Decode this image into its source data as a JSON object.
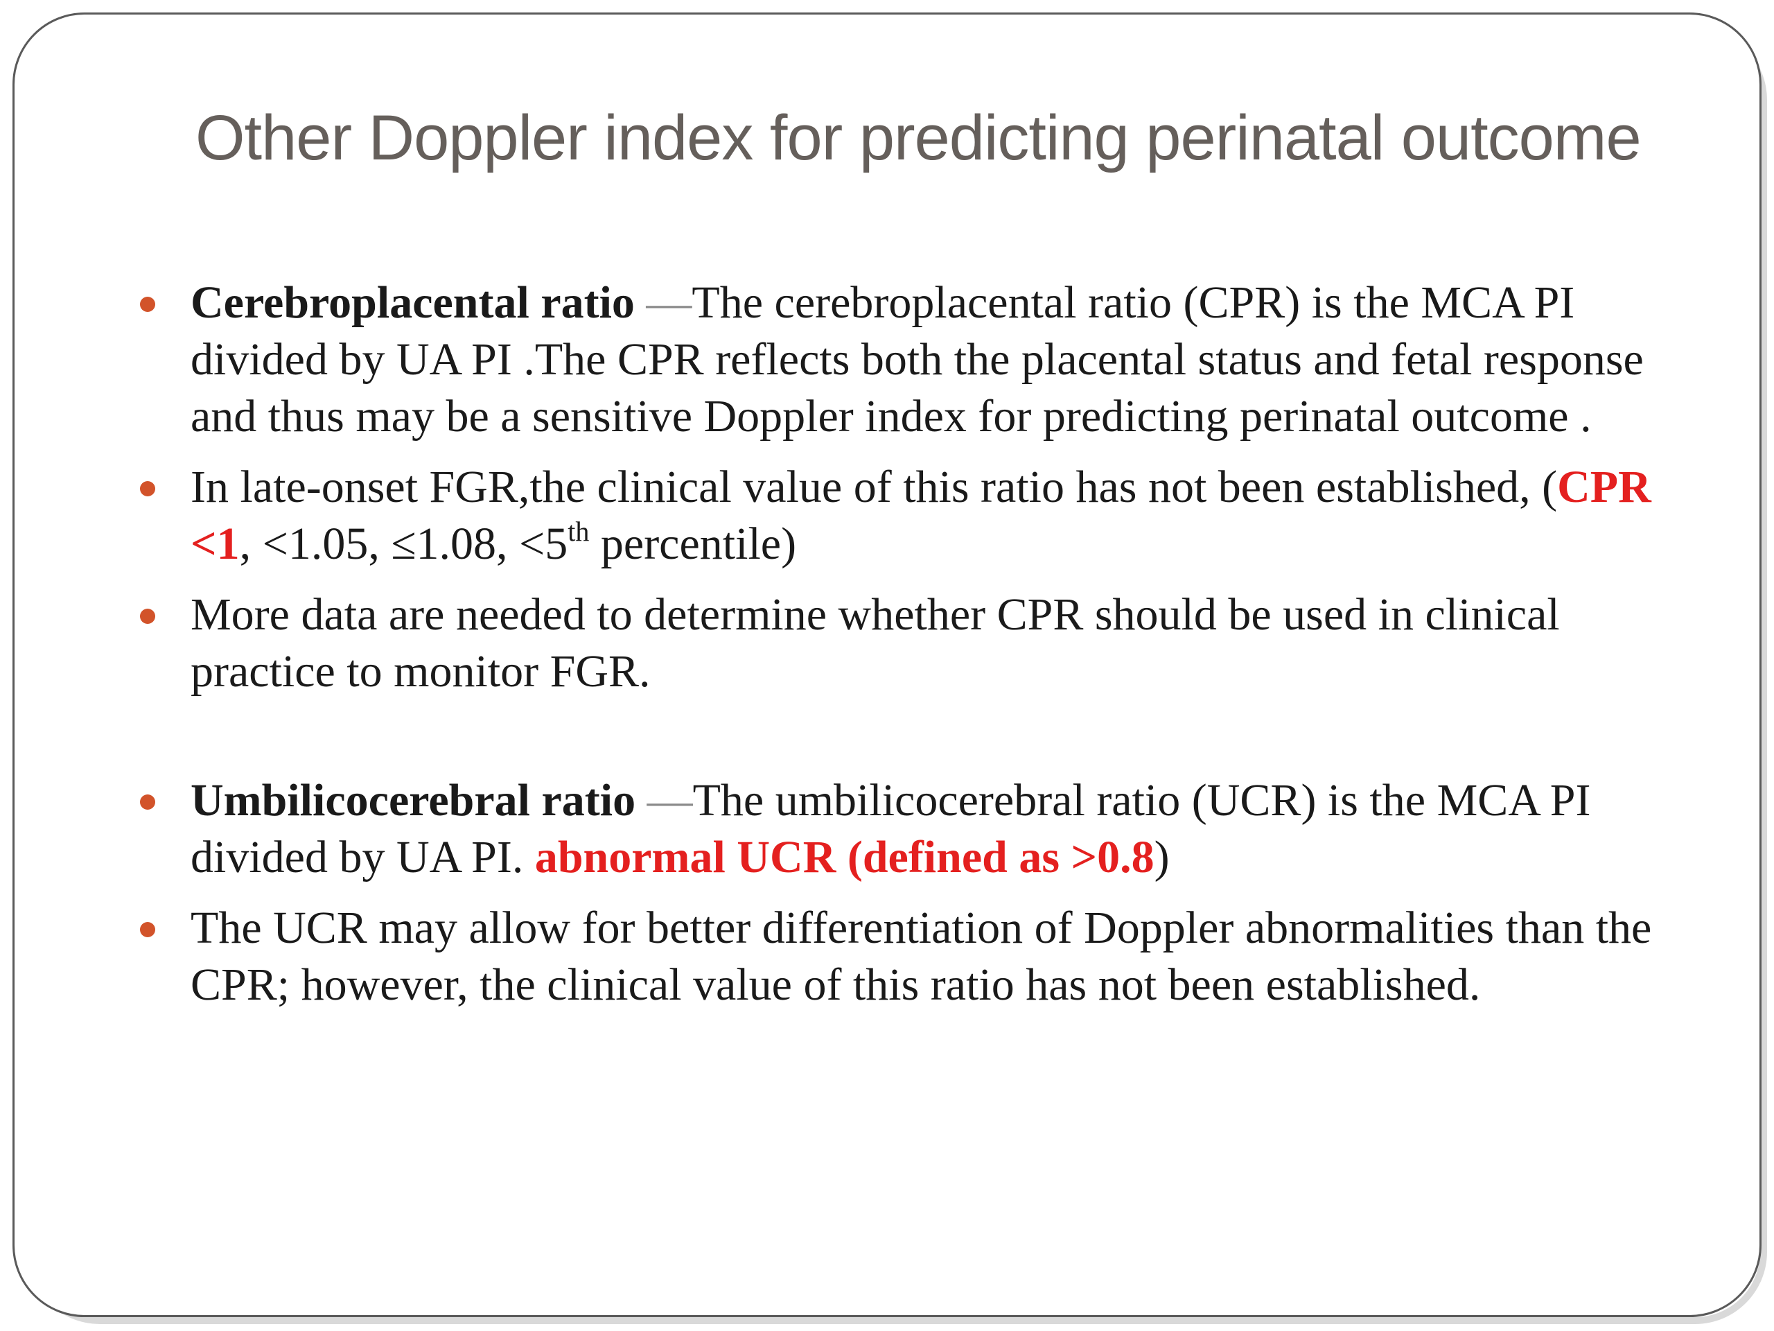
{
  "slide": {
    "title": "Other Doppler index for predicting perinatal outcome",
    "bullets": [
      {
        "term": "Cerebroplacental ratio",
        "dash": " —",
        "text": "The cerebroplacental ratio (CPR) is the MCA PI divided by UA PI .The CPR reflects both the placental status and fetal response and thus may be a sensitive Doppler index for predicting perinatal outcome ."
      },
      {
        "text_before": "In late-onset FGR,the clinical value of this ratio has not been established, (",
        "highlight": "CPR <1",
        "text_mid": ", <1.05, ≤1.08, <5",
        "superscript": "th",
        "text_after": " percentile)"
      },
      {
        "text": "More data are needed to determine whether CPR should be used in clinical practice to monitor FGR."
      },
      {
        "term": "Umbilicocerebral ratio",
        "dash": " —",
        "text_before": "The umbilicocerebral ratio (UCR) is the MCA PI divided by UA PI. ",
        "highlight": "abnormal UCR (defined as >0.8",
        "text_after": ")"
      },
      {
        "text": "The UCR may allow for better differentiation of Doppler abnormalities than the CPR; however, the clinical value of this ratio has not been established."
      }
    ]
  },
  "colors": {
    "title": "#655f5b",
    "bullet_marker": "#d2532a",
    "highlight": "#e4201f",
    "body_text": "#1a1a1a"
  }
}
